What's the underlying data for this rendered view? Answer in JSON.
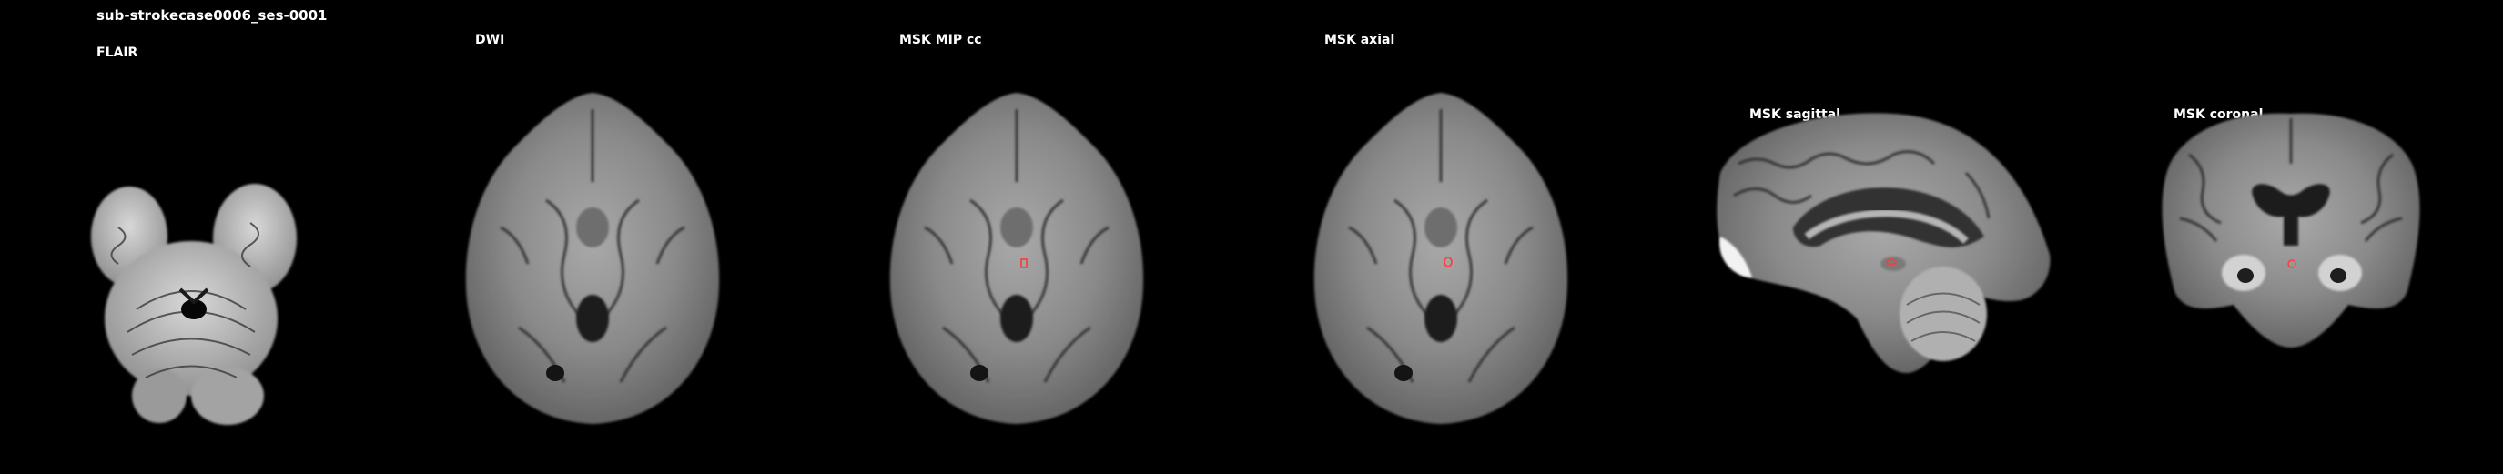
{
  "figure": {
    "title": "sub-strokecase0006_ses-0001",
    "panels": [
      {
        "label": "FLAIR",
        "view": "axial-posterior-fossa"
      },
      {
        "label": "DWI",
        "view": "axial"
      },
      {
        "label": "MSK MIP cc",
        "view": "axial",
        "mask_marker": true
      },
      {
        "label": "MSK axial",
        "view": "axial",
        "mask_marker": true
      },
      {
        "label": "MSK sagittal",
        "view": "sagittal",
        "mask_marker": true
      },
      {
        "label": "MSK coronal",
        "view": "coronal",
        "mask_marker": true
      }
    ]
  },
  "colors": {
    "background": "#000000",
    "text": "#ffffff",
    "mask": "#ff3a3a"
  }
}
